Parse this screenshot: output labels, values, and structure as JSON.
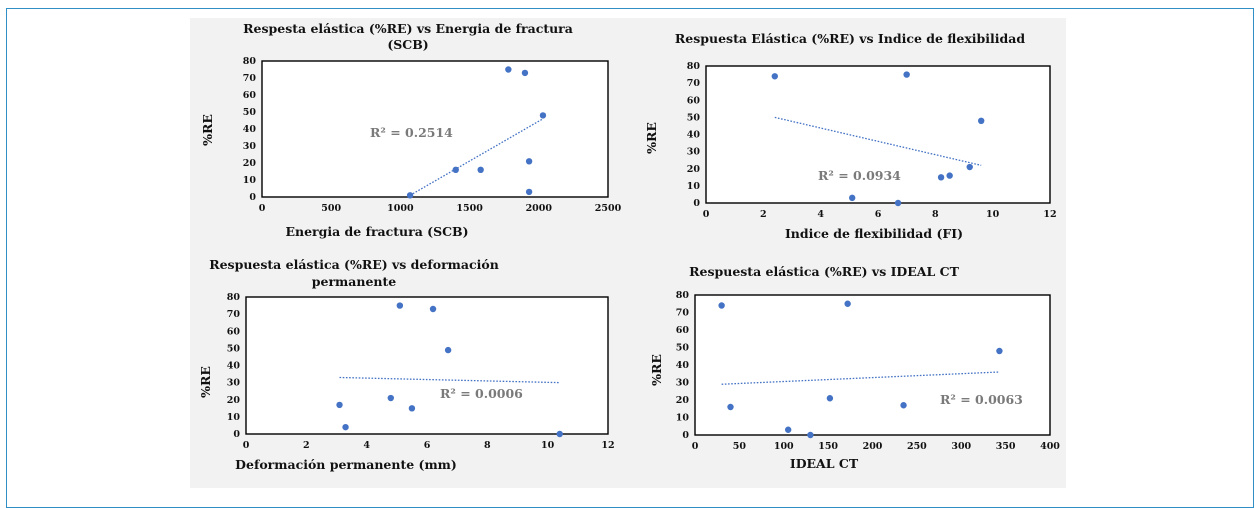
{
  "chart_data": [
    {
      "type": "scatter",
      "title": "Respesta elástica (%RE) vs Energia de fractura (SCB)",
      "xlabel": "Energia de fractura (SCB)",
      "ylabel": "%RE",
      "xlim": [
        0,
        2500
      ],
      "ylim": [
        0,
        80
      ],
      "xticks": [
        "0",
        "500",
        "1000",
        "1500",
        "2000",
        "2500"
      ],
      "yticks": [
        "0",
        "10",
        "20",
        "30",
        "40",
        "50",
        "60",
        "70",
        "80"
      ],
      "points": [
        {
          "x": 1070,
          "y": 1
        },
        {
          "x": 1400,
          "y": 16
        },
        {
          "x": 1580,
          "y": 16
        },
        {
          "x": 1780,
          "y": 75
        },
        {
          "x": 1900,
          "y": 73
        },
        {
          "x": 1930,
          "y": 21
        },
        {
          "x": 1930,
          "y": 3
        },
        {
          "x": 2030,
          "y": 48
        }
      ],
      "trendline": {
        "x": [
          1070,
          2030
        ],
        "y": [
          1,
          46
        ]
      },
      "r2_label": "R² = 0.2514",
      "point_color": "#4472c4",
      "trend_color": "#4472c4"
    },
    {
      "type": "scatter",
      "title": "Respuesta Elástica (%RE) vs Indice de flexibilidad",
      "xlabel": "Indice de flexibilidad (FI)",
      "ylabel": "%RE",
      "xlim": [
        0,
        12
      ],
      "ylim": [
        0,
        80
      ],
      "xticks": [
        "0",
        "2",
        "4",
        "6",
        "8",
        "10",
        "12"
      ],
      "yticks": [
        "0",
        "10",
        "20",
        "30",
        "40",
        "50",
        "60",
        "70",
        "80"
      ],
      "points": [
        {
          "x": 2.4,
          "y": 74
        },
        {
          "x": 7.0,
          "y": 75
        },
        {
          "x": 9.6,
          "y": 48
        },
        {
          "x": 9.2,
          "y": 21
        },
        {
          "x": 8.5,
          "y": 16
        },
        {
          "x": 8.2,
          "y": 15
        },
        {
          "x": 5.1,
          "y": 3
        },
        {
          "x": 6.7,
          "y": 0
        }
      ],
      "trendline": {
        "x": [
          2.4,
          9.6
        ],
        "y": [
          50,
          22
        ]
      },
      "r2_label": "R² = 0.0934",
      "point_color": "#4472c4",
      "trend_color": "#4472c4"
    },
    {
      "type": "scatter",
      "title": "Respuesta elástica (%RE) vs deformación permanente",
      "xlabel": "Deformación permanente (mm)",
      "ylabel": "%RE",
      "xlim": [
        0,
        12
      ],
      "ylim": [
        0,
        80
      ],
      "xticks": [
        "0",
        "2",
        "4",
        "6",
        "8",
        "10",
        "12"
      ],
      "yticks": [
        "0",
        "10",
        "20",
        "30",
        "40",
        "50",
        "60",
        "70",
        "80"
      ],
      "points": [
        {
          "x": 5.1,
          "y": 75
        },
        {
          "x": 6.2,
          "y": 73
        },
        {
          "x": 6.7,
          "y": 49
        },
        {
          "x": 4.8,
          "y": 21
        },
        {
          "x": 3.1,
          "y": 17
        },
        {
          "x": 5.5,
          "y": 15
        },
        {
          "x": 3.3,
          "y": 4
        },
        {
          "x": 10.4,
          "y": 0
        }
      ],
      "trendline": {
        "x": [
          3.1,
          10.4
        ],
        "y": [
          33,
          30
        ]
      },
      "r2_label": "R² = 0.0006",
      "point_color": "#4472c4",
      "trend_color": "#4472c4"
    },
    {
      "type": "scatter",
      "title": "Respuesta elástica (%RE) vs IDEAL CT",
      "xlabel": "IDEAL CT",
      "ylabel": "%RE",
      "xlim": [
        0,
        400
      ],
      "ylim": [
        0,
        80
      ],
      "xticks": [
        "0",
        "50",
        "100",
        "150",
        "200",
        "250",
        "300",
        "350",
        "400"
      ],
      "yticks": [
        "0",
        "10",
        "20",
        "30",
        "40",
        "50",
        "60",
        "70",
        "80"
      ],
      "points": [
        {
          "x": 30,
          "y": 74
        },
        {
          "x": 172,
          "y": 75
        },
        {
          "x": 343,
          "y": 48
        },
        {
          "x": 152,
          "y": 21
        },
        {
          "x": 235,
          "y": 17
        },
        {
          "x": 40,
          "y": 16
        },
        {
          "x": 105,
          "y": 3
        },
        {
          "x": 130,
          "y": 0
        }
      ],
      "trendline": {
        "x": [
          30,
          343
        ],
        "y": [
          29,
          36
        ]
      },
      "r2_label": "R² = 0.0063",
      "point_color": "#4472c4",
      "trend_color": "#4472c4"
    }
  ]
}
